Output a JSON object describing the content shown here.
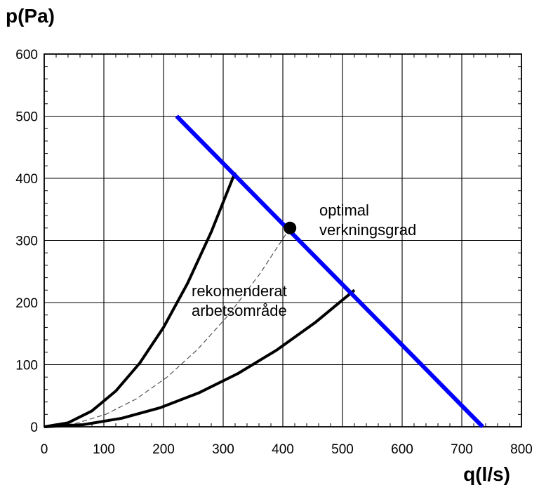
{
  "chart_data": {
    "type": "line",
    "ylabel": "p(Pa)",
    "xlabel": "q(l/s)",
    "xlim": [
      0,
      800
    ],
    "ylim": [
      0,
      600
    ],
    "x_ticks": [
      0,
      100,
      200,
      300,
      400,
      500,
      600,
      700,
      800
    ],
    "y_ticks": [
      0,
      100,
      200,
      300,
      400,
      500,
      600
    ],
    "x_tick_labels": [
      "0",
      "100",
      "200",
      "300",
      "400",
      "500",
      "600",
      "700",
      "800"
    ],
    "y_tick_labels": [
      "0",
      "100",
      "200",
      "300",
      "400",
      "500",
      "600"
    ],
    "grid": true,
    "colors": {
      "fan_curve": "#0000ff",
      "system_curves": "#000000",
      "optimal_curve": "#555555"
    },
    "series": [
      {
        "id": "fan-curve",
        "style": "solid-thick-blue",
        "x": [
          222,
          735
        ],
        "y": [
          500,
          0
        ]
      },
      {
        "id": "upper-system-curve",
        "style": "solid-black",
        "x": [
          0,
          40,
          80,
          120,
          160,
          200,
          240,
          280,
          320
        ],
        "y": [
          0,
          6.4,
          25.6,
          57.6,
          102.4,
          160,
          230.4,
          313.6,
          409.6
        ]
      },
      {
        "id": "lower-system-curve",
        "style": "solid-black",
        "x": [
          0,
          65,
          130,
          195,
          260,
          325,
          390,
          455,
          520
        ],
        "y": [
          0,
          3.4,
          13.75,
          30.9,
          55,
          85.9,
          123.7,
          168.4,
          220
        ]
      },
      {
        "id": "optimal-system-curve",
        "style": "dashed-thin-grey",
        "x": [
          0,
          51.5,
          103,
          154.5,
          206,
          257.5,
          309,
          360.5,
          412
        ],
        "y": [
          0,
          5,
          20,
          45,
          80,
          125,
          180,
          245,
          320
        ]
      }
    ],
    "points": [
      {
        "id": "optimal-point",
        "x": 412,
        "y": 320
      }
    ],
    "annotations": [
      {
        "lines": [
          "optimal",
          "verkningsgrad"
        ]
      },
      {
        "lines": [
          "rekomenderat",
          "arbetsområde"
        ]
      }
    ]
  }
}
